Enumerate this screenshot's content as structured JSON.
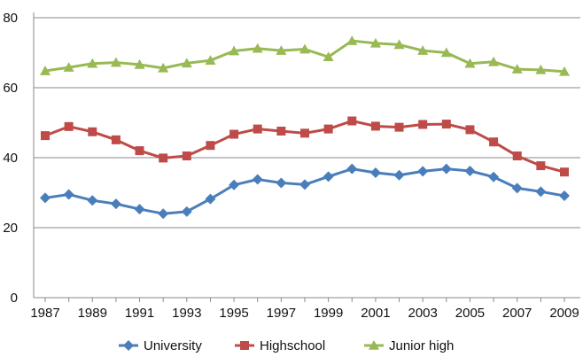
{
  "chart_data": {
    "type": "line",
    "title": "",
    "xlabel": "",
    "ylabel": "",
    "x": [
      1987,
      1988,
      1989,
      1990,
      1991,
      1992,
      1993,
      1994,
      1995,
      1996,
      1997,
      1998,
      1999,
      2000,
      2001,
      2002,
      2003,
      2004,
      2005,
      2006,
      2007,
      2008,
      2009
    ],
    "x_tick_labels": [
      "1987",
      "1989",
      "1991",
      "1993",
      "1995",
      "1997",
      "1999",
      "2001",
      "2003",
      "2005",
      "2007",
      "2009"
    ],
    "y_tick_labels": [
      "0",
      "20",
      "40",
      "60",
      "80"
    ],
    "ylim": [
      0,
      80
    ],
    "grid": "horizontal",
    "legend_position": "bottom",
    "series": [
      {
        "name": "University",
        "color": "#4a7ebb",
        "marker": "diamond",
        "values": [
          28.5,
          29.5,
          27.8,
          26.8,
          25.3,
          24.0,
          24.6,
          28.2,
          32.2,
          33.8,
          32.8,
          32.3,
          34.6,
          36.8,
          35.7,
          35.0,
          36.1,
          36.8,
          36.2,
          34.5,
          31.3,
          30.3,
          29.1
        ]
      },
      {
        "name": "Highschool",
        "color": "#be4b48",
        "marker": "square",
        "values": [
          46.3,
          48.9,
          47.4,
          45.1,
          42.0,
          39.9,
          40.5,
          43.5,
          46.7,
          48.2,
          47.6,
          47.0,
          48.2,
          50.5,
          49.0,
          48.7,
          49.5,
          49.6,
          48.0,
          44.5,
          40.5,
          37.7,
          35.9
        ]
      },
      {
        "name": "Junior high",
        "color": "#98b954",
        "marker": "triangle",
        "values": [
          64.8,
          65.8,
          66.9,
          67.2,
          66.6,
          65.6,
          67.0,
          67.8,
          70.5,
          71.2,
          70.6,
          71.0,
          68.8,
          73.4,
          72.7,
          72.3,
          70.6,
          70.0,
          66.9,
          67.4,
          65.3,
          65.1,
          64.6
        ]
      }
    ]
  }
}
